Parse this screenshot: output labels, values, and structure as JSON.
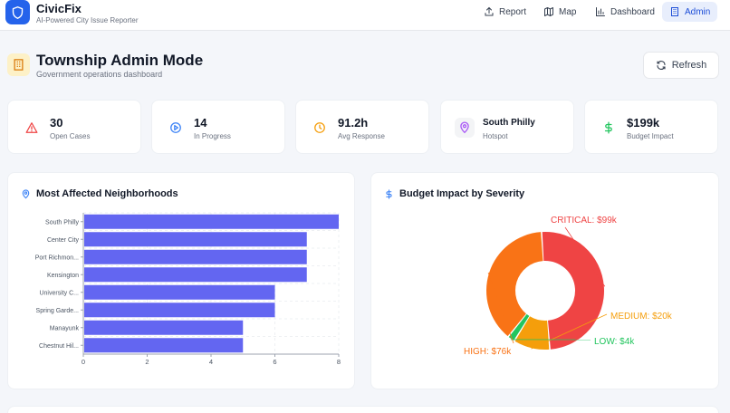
{
  "header": {
    "brand_name": "CivicFix",
    "brand_tagline": "AI-Powered City Issue Reporter",
    "nav": [
      {
        "label": "Report",
        "icon": "upload-icon"
      },
      {
        "label": "Map",
        "icon": "map-icon"
      },
      {
        "label": "Dashboard",
        "icon": "bar-chart-icon"
      },
      {
        "label": "Admin",
        "icon": "building-icon",
        "active": true
      }
    ]
  },
  "page": {
    "title": "Township Admin Mode",
    "subtitle": "Government operations dashboard",
    "refresh_label": "Refresh"
  },
  "stats": [
    {
      "value": "30",
      "label": "Open Cases",
      "icon": "alert-triangle-icon",
      "color": "#ef4444"
    },
    {
      "value": "14",
      "label": "In Progress",
      "icon": "play-circle-icon",
      "color": "#3b82f6"
    },
    {
      "value": "91.2h",
      "label": "Avg Response",
      "icon": "clock-icon",
      "color": "#f59e0b"
    },
    {
      "value": "South Philly",
      "label": "Hotspot",
      "icon": "map-pin-icon",
      "color": "#a855f7"
    },
    {
      "value": "$199k",
      "label": "Budget Impact",
      "icon": "dollar-icon",
      "color": "#22c55e"
    }
  ],
  "neighborhoods_card": {
    "title": "Most Affected Neighborhoods",
    "icon": "map-pin-icon"
  },
  "budget_card": {
    "title": "Budget Impact by Severity",
    "icon": "dollar-icon"
  },
  "chart_data": [
    {
      "type": "bar",
      "orientation": "horizontal",
      "title": "Most Affected Neighborhoods",
      "categories": [
        "South Philly",
        "Center City",
        "Port Richmon...",
        "Kensington",
        "University C...",
        "Spring Garde...",
        "Manayunk",
        "Chestnut Hil..."
      ],
      "values": [
        8,
        7,
        7,
        7,
        6,
        6,
        5,
        5
      ],
      "xlim": [
        0,
        8
      ],
      "xticks": [
        "0",
        "2",
        "4",
        "6",
        "8"
      ],
      "grid": true,
      "color": "#6366f1"
    },
    {
      "type": "pie",
      "donut": true,
      "title": "Budget Impact by Severity",
      "slices": [
        {
          "label": "CRITICAL: $99k",
          "value": 99,
          "color": "#ef4444"
        },
        {
          "label": "MEDIUM: $20k",
          "value": 20,
          "color": "#f59e0b"
        },
        {
          "label": "LOW: $4k",
          "value": 4,
          "color": "#22c55e"
        },
        {
          "label": "HIGH: $76k",
          "value": 76,
          "color": "#f97316"
        }
      ]
    }
  ]
}
